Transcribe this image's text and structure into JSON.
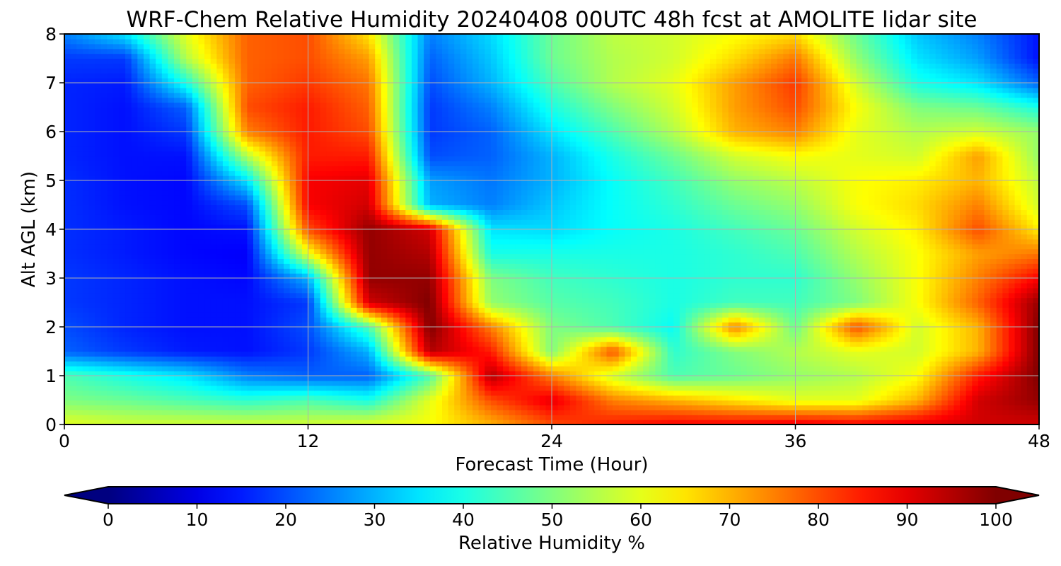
{
  "chart_data": {
    "type": "heatmap",
    "title": "WRF-Chem Relative Humidity 20240408 00UTC 48h fcst at AMOLITE lidar site",
    "xlabel": "Forecast Time (Hour)",
    "ylabel": "Alt AGL (km)",
    "xlim": [
      0,
      48
    ],
    "ylim": [
      0,
      8
    ],
    "xticks": [
      "0",
      "12",
      "24",
      "36",
      "48"
    ],
    "yticks": [
      "0",
      "1",
      "2",
      "3",
      "4",
      "5",
      "6",
      "7",
      "8"
    ],
    "grid": true,
    "colormap": "jet",
    "colorbar": {
      "label": "Relative Humidity %",
      "ticks": [
        "0",
        "10",
        "20",
        "30",
        "40",
        "50",
        "60",
        "70",
        "80",
        "90",
        "100"
      ],
      "range": [
        0,
        100
      ],
      "extend": "both",
      "orientation": "horizontal"
    },
    "x": [
      0,
      3,
      6,
      9,
      12,
      15,
      18,
      21,
      24,
      27,
      30,
      33,
      36,
      39,
      42,
      45,
      48
    ],
    "y": [
      0,
      0.5,
      1,
      1.5,
      2,
      2.5,
      3,
      3.5,
      4,
      4.5,
      5,
      5.5,
      6,
      6.5,
      7,
      7.5,
      8
    ],
    "z": [
      [
        60,
        58,
        58,
        58,
        58,
        60,
        62,
        70,
        80,
        85,
        88,
        88,
        90,
        88,
        90,
        92,
        92
      ],
      [
        50,
        48,
        45,
        42,
        45,
        40,
        60,
        80,
        90,
        75,
        70,
        65,
        60,
        60,
        70,
        92,
        98
      ],
      [
        45,
        40,
        35,
        25,
        22,
        22,
        45,
        95,
        75,
        58,
        45,
        48,
        52,
        55,
        62,
        85,
        100
      ],
      [
        22,
        18,
        15,
        14,
        18,
        30,
        95,
        85,
        50,
        80,
        42,
        50,
        55,
        60,
        58,
        70,
        100
      ],
      [
        20,
        16,
        14,
        14,
        20,
        45,
        100,
        75,
        50,
        45,
        38,
        75,
        48,
        80,
        58,
        70,
        100
      ],
      [
        18,
        16,
        14,
        14,
        18,
        92,
        100,
        52,
        46,
        44,
        40,
        44,
        44,
        50,
        62,
        78,
        98
      ],
      [
        18,
        16,
        14,
        13,
        30,
        98,
        98,
        50,
        44,
        42,
        40,
        42,
        42,
        52,
        62,
        75,
        88
      ],
      [
        17,
        15,
        13,
        12,
        60,
        98,
        95,
        40,
        40,
        40,
        40,
        42,
        45,
        55,
        62,
        72,
        76
      ],
      [
        17,
        15,
        13,
        14,
        80,
        98,
        92,
        35,
        34,
        38,
        40,
        44,
        48,
        58,
        64,
        80,
        64
      ],
      [
        17,
        14,
        13,
        20,
        88,
        92,
        30,
        25,
        32,
        38,
        42,
        48,
        52,
        62,
        66,
        75,
        58
      ],
      [
        17,
        14,
        13,
        35,
        88,
        90,
        28,
        24,
        30,
        38,
        44,
        52,
        56,
        62,
        64,
        70,
        56
      ],
      [
        16,
        14,
        14,
        55,
        85,
        85,
        20,
        22,
        30,
        40,
        48,
        58,
        62,
        60,
        58,
        72,
        52
      ],
      [
        16,
        14,
        18,
        75,
        85,
        80,
        18,
        22,
        35,
        45,
        55,
        70,
        75,
        60,
        55,
        58,
        52
      ],
      [
        16,
        14,
        22,
        80,
        85,
        78,
        18,
        25,
        40,
        50,
        58,
        72,
        80,
        62,
        50,
        48,
        40
      ],
      [
        16,
        15,
        40,
        78,
        82,
        76,
        20,
        30,
        45,
        55,
        60,
        72,
        82,
        58,
        40,
        35,
        22
      ],
      [
        18,
        18,
        55,
        78,
        80,
        72,
        22,
        32,
        48,
        55,
        58,
        66,
        76,
        52,
        35,
        28,
        14
      ],
      [
        25,
        35,
        60,
        78,
        80,
        65,
        25,
        34,
        48,
        56,
        58,
        62,
        66,
        48,
        32,
        25,
        14
      ]
    ]
  }
}
